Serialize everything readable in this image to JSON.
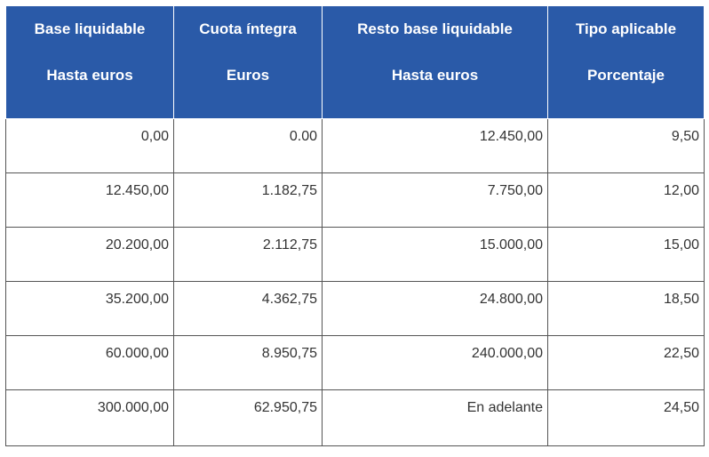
{
  "header": [
    {
      "line1": "Base liquidable",
      "line2": "Hasta euros"
    },
    {
      "line1": "Cuota íntegra",
      "line2": "Euros"
    },
    {
      "line1": "Resto base liquidable",
      "line2": "Hasta euros"
    },
    {
      "line1": "Tipo aplicable",
      "line2": "Porcentaje"
    }
  ],
  "rows": [
    [
      "0,00",
      "0.00",
      "12.450,00",
      "9,50"
    ],
    [
      "12.450,00",
      "1.182,75",
      "7.750,00",
      "12,00"
    ],
    [
      "20.200,00",
      "2.112,75",
      "15.000,00",
      "15,00"
    ],
    [
      "35.200,00",
      "4.362,75",
      "24.800,00",
      "18,50"
    ],
    [
      "60.000,00",
      "8.950,75",
      "240.000,00",
      "22,50"
    ],
    [
      "300.000,00",
      "62.950,75",
      "En adelante",
      "24,50"
    ]
  ],
  "colors": {
    "header_bg": "#2a5aa8",
    "header_text": "#ffffff",
    "border": "#555555",
    "cell_text": "#333333"
  }
}
